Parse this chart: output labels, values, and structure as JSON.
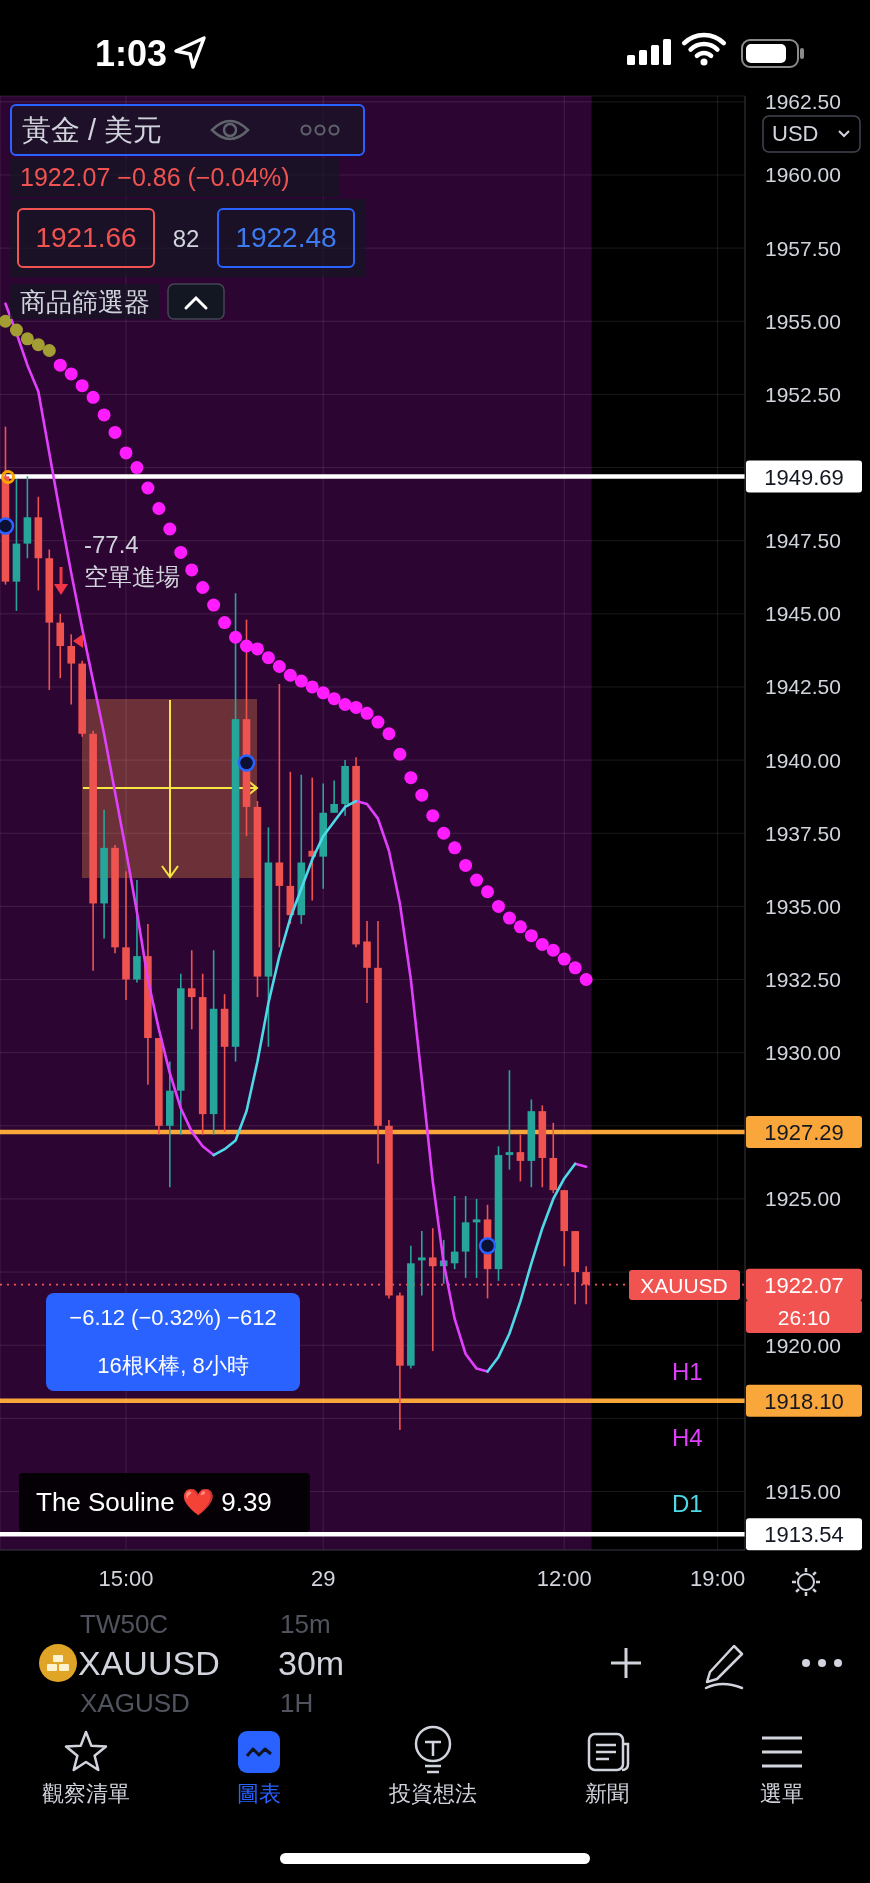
{
  "chart_data": {
    "type": "candlestick",
    "annotations": [
      "1:03",
      "黃金 / 美元",
      "1922.07 −0.86 (−0.04%)",
      "1921.66",
      "82",
      "1922.48",
      "商品篩選器",
      "-77.4",
      "空單進場",
      "−6.12 (−0.32%) −612",
      "16根K棒, 8小時",
      "USD",
      "H1",
      "H4",
      "D1",
      "The Souline ❤️ 9.39",
      "TW50C",
      "15m",
      "XAUUSD",
      "30m",
      "XAGUSD",
      "1H",
      "觀察清單",
      "圖表",
      "投資想法",
      "新聞",
      "選單",
      "XAUUSD",
      "26:10"
    ],
    "categories": [
      null,
      null,
      null,
      null,
      null,
      null,
      null,
      null,
      null,
      null,
      null,
      "15:00",
      null,
      null,
      null,
      null,
      null,
      null,
      null,
      null,
      null,
      null,
      null,
      null,
      null,
      null,
      null,
      null,
      null,
      "29",
      null,
      null,
      null,
      null,
      null,
      null,
      null,
      null,
      null,
      null,
      null,
      null,
      null,
      null,
      null,
      null,
      null,
      null,
      null,
      null,
      null,
      "12:00",
      null,
      null,
      null,
      null,
      null,
      null,
      null,
      null,
      null,
      null,
      null,
      null,
      null,
      "19:00",
      null,
      null
    ],
    "ohlc": [
      [
        1949.7,
        1951.4,
        1946.0,
        1946.1
      ],
      [
        1946.1,
        1949.6,
        1945.1,
        1947.4
      ],
      [
        1947.4,
        1949.7,
        1946.9,
        1948.3
      ],
      [
        1948.3,
        1949.0,
        1945.8,
        1946.9
      ],
      [
        1946.9,
        1947.2,
        1942.4,
        1944.7
      ],
      [
        1944.7,
        1945.0,
        1942.8,
        1943.9
      ],
      [
        1943.9,
        1944.3,
        1941.9,
        1943.3
      ],
      [
        1943.3,
        1943.4,
        1940.8,
        1940.9
      ],
      [
        1940.9,
        1941.0,
        1932.8,
        1935.1
      ],
      [
        1935.1,
        1938.3,
        1933.9,
        1937.0
      ],
      [
        1937.0,
        1937.1,
        1933.4,
        1933.6
      ],
      [
        1933.6,
        1936.2,
        1931.8,
        1932.5
      ],
      [
        1932.5,
        1935.9,
        1932.4,
        1933.3
      ],
      [
        1933.3,
        1934.4,
        1928.9,
        1930.5
      ],
      [
        1930.5,
        1930.5,
        1927.2,
        1927.5
      ],
      [
        1927.5,
        1929.7,
        1925.4,
        1928.7
      ],
      [
        1928.7,
        1932.7,
        1927.2,
        1932.2
      ],
      [
        1932.2,
        1933.5,
        1930.8,
        1931.9
      ],
      [
        1931.9,
        1932.7,
        1927.2,
        1927.9
      ],
      [
        1927.9,
        1933.5,
        1927.2,
        1931.5
      ],
      [
        1931.5,
        1932.0,
        1927.3,
        1930.2
      ],
      [
        1930.2,
        1945.7,
        1929.7,
        1941.4
      ],
      [
        1941.4,
        1944.8,
        1937.4,
        1938.4
      ],
      [
        1938.4,
        1938.6,
        1931.9,
        1932.6
      ],
      [
        1932.6,
        1937.7,
        1930.2,
        1936.5
      ],
      [
        1936.5,
        1942.6,
        1933.6,
        1935.7
      ],
      [
        1935.7,
        1939.6,
        1934.4,
        1934.7
      ],
      [
        1934.7,
        1939.5,
        1934.4,
        1936.5
      ],
      [
        1936.9,
        1939.4,
        1935.2,
        1936.7
      ],
      [
        1936.7,
        1939.2,
        1935.6,
        1938.2
      ],
      [
        1938.2,
        1939.3,
        1938.2,
        1938.5
      ],
      [
        1938.5,
        1940.0,
        1938.1,
        1939.8
      ],
      [
        1939.8,
        1940.1,
        1933.6,
        1933.7
      ],
      [
        1933.8,
        1934.5,
        1931.7,
        1932.9
      ],
      [
        1932.9,
        1934.5,
        1926.2,
        1927.5
      ],
      [
        1927.5,
        1927.7,
        1921.6,
        1921.7
      ],
      [
        1921.7,
        1921.8,
        1917.1,
        1919.3
      ],
      [
        1919.3,
        1923.4,
        1919.2,
        1922.8
      ],
      [
        1922.9,
        1923.9,
        1921.7,
        1923.0
      ],
      [
        1923.0,
        1924.0,
        1919.8,
        1922.7
      ],
      [
        1922.7,
        1923.6,
        1922.1,
        1922.9
      ],
      [
        1922.8,
        1925.1,
        1922.6,
        1923.2
      ],
      [
        1923.2,
        1925.1,
        1922.3,
        1924.2
      ],
      [
        1924.2,
        1925.0,
        1922.3,
        1924.3
      ],
      [
        1924.3,
        1924.8,
        1921.6,
        1922.6
      ],
      [
        1922.6,
        1926.8,
        1922.2,
        1926.5
      ],
      [
        1926.5,
        1929.4,
        1926.0,
        1926.6
      ],
      [
        1926.6,
        1927.2,
        1925.6,
        1926.3
      ],
      [
        1926.3,
        1928.4,
        1925.4,
        1928.0
      ],
      [
        1928.0,
        1928.2,
        1925.4,
        1926.4
      ],
      [
        1926.4,
        1927.6,
        1925.2,
        1925.3
      ],
      [
        1925.3,
        1925.3,
        1922.7,
        1923.9
      ],
      [
        1923.9,
        1923.9,
        1921.4,
        1922.5
      ],
      [
        1922.5,
        1922.7,
        1921.4,
        1922.07
      ],
      null,
      null,
      null,
      null,
      null,
      null,
      null,
      null,
      null,
      null,
      null,
      null,
      null,
      null
    ],
    "colors": [
      "#ef5350",
      "#26a69a",
      "#26a69a",
      "#ef5350",
      "#ef5350",
      "#ef5350",
      "#ef5350",
      "#ef5350",
      "#ef5350",
      "#26a69a",
      "#ef5350",
      "#ef5350",
      "#26a69a",
      "#ef5350",
      "#ef5350",
      "#26a69a",
      "#26a69a",
      "#ef5350",
      "#ef5350",
      "#26a69a",
      "#ef5350",
      "#26a69a",
      "#ef5350",
      "#ef5350",
      "#26a69a",
      "#ef5350",
      "#ef5350",
      "#26a69a",
      "#ef5350",
      "#26a69a",
      "#26a69a",
      "#26a69a",
      "#ef5350",
      "#ef5350",
      "#ef5350",
      "#ef5350",
      "#ef5350",
      "#26a69a",
      "#26a69a",
      "#ef5350",
      "#26a69a",
      "#26a69a",
      "#26a69a",
      "#26a69a",
      "#ef5350",
      "#26a69a",
      "#26a69a",
      "#ef5350",
      "#26a69a",
      "#ef5350",
      "#ef5350",
      "#ef5350",
      "#ef5350",
      "#ef5350",
      null,
      null,
      null,
      null,
      null,
      null,
      null,
      null,
      null,
      null,
      null,
      null,
      null,
      null
    ],
    "series": [
      {
        "type": "line",
        "color": "#e040fb",
        "values": [
          1955.6,
          1954.6,
          1953.5,
          1952.6,
          1950.5,
          1948.4,
          1946.4,
          1944.5,
          1942.7,
          1940.9,
          1938.9,
          1936.9,
          1934.8,
          1932.5,
          1930.8,
          1929.3,
          1928.1,
          1927.3,
          1926.8,
          1926.5,
          null,
          null,
          null,
          null,
          null,
          null,
          null,
          null,
          null,
          null,
          null,
          null,
          1938.6,
          1938.5,
          1938.0,
          1936.9,
          1935.1,
          1932.5,
          1929.1,
          1925.6,
          1922.8,
          1920.9,
          1919.7,
          1919.2,
          1919.1,
          null,
          null,
          null,
          null,
          null,
          null,
          null,
          1926.2,
          1926.1,
          null,
          null,
          null,
          null,
          null,
          null,
          null,
          null,
          null,
          null,
          null,
          null,
          null,
          null
        ]
      },
      {
        "type": "line",
        "color": "#4dd9e8",
        "values": [
          null,
          null,
          null,
          null,
          null,
          null,
          null,
          null,
          null,
          null,
          null,
          null,
          null,
          null,
          null,
          null,
          null,
          null,
          null,
          1926.5,
          1926.7,
          1927.0,
          1928.0,
          1929.7,
          1931.7,
          1933.3,
          1934.6,
          1935.6,
          1936.6,
          1937.4,
          1937.9,
          1938.4,
          1938.6,
          null,
          null,
          null,
          null,
          null,
          null,
          null,
          null,
          null,
          null,
          null,
          1919.1,
          1919.6,
          1920.4,
          1921.5,
          1922.8,
          1924.0,
          1925.0,
          1925.7,
          1926.2,
          null,
          null,
          null,
          null,
          null,
          null,
          null,
          null,
          null,
          null,
          null,
          null,
          null,
          null,
          null
        ]
      },
      {
        "type": "scatter",
        "marker": "circle",
        "colors": [
          "#a39e34",
          "#a39e34",
          "#a39e34",
          "#a39e34",
          "#a39e34",
          "#ff1cff",
          "#ff1cff",
          "#ff1cff",
          "#ff1cff",
          "#ff1cff",
          "#ff1cff",
          "#ff1cff",
          "#ff1cff",
          "#ff1cff",
          "#ff1cff",
          "#ff1cff",
          "#ff1cff",
          "#ff1cff",
          "#ff1cff",
          "#ff1cff",
          "#ff1cff",
          "#ff1cff",
          "#ff1cff",
          "#ff1cff",
          "#ff1cff",
          "#ff1cff",
          "#ff1cff",
          "#ff1cff",
          "#ff1cff",
          "#ff1cff",
          "#ff1cff",
          "#ff1cff",
          "#ff1cff",
          "#ff1cff",
          "#ff1cff",
          "#ff1cff",
          "#ff1cff",
          "#ff1cff",
          "#ff1cff",
          "#ff1cff",
          "#ff1cff",
          "#ff1cff",
          "#ff1cff",
          "#ff1cff",
          "#ff1cff",
          "#ff1cff",
          "#ff1cff",
          "#ff1cff",
          "#ff1cff",
          "#ff1cff",
          "#ff1cff",
          "#ff1cff",
          "#ff1cff",
          "#ff1cff",
          null,
          null,
          null,
          null,
          null,
          null,
          null,
          null,
          null,
          null,
          null,
          null,
          null,
          null
        ],
        "values": [
          1955.0,
          1954.7,
          1954.4,
          1954.2,
          1954.0,
          1953.5,
          1953.2,
          1952.8,
          1952.4,
          1951.8,
          1951.2,
          1950.5,
          1950.0,
          1949.3,
          1948.6,
          1947.9,
          1947.1,
          1946.5,
          1945.9,
          1945.3,
          1944.7,
          1944.2,
          1943.9,
          1943.8,
          1943.5,
          1943.2,
          1942.9,
          1942.7,
          1942.5,
          1942.3,
          1942.1,
          1941.9,
          1941.8,
          1941.6,
          1941.3,
          1940.9,
          1940.2,
          1939.4,
          1938.8,
          1938.1,
          1937.5,
          1937.0,
          1936.4,
          1935.9,
          1935.5,
          1935.0,
          1934.6,
          1934.3,
          1934.0,
          1933.7,
          1933.5,
          1933.2,
          1932.9,
          1932.5,
          null,
          null,
          null,
          null,
          null,
          null,
          null,
          null,
          null,
          null,
          null,
          null,
          null,
          null
        ]
      },
      {
        "type": "scatter",
        "marker": "circle",
        "color": "#2962ff",
        "values": [
          1948.0,
          null,
          null,
          null,
          null,
          null,
          null,
          null,
          null,
          null,
          null,
          null,
          null,
          null,
          null,
          null,
          null,
          null,
          null,
          null,
          null,
          null,
          1939.9,
          null,
          null,
          null,
          null,
          null,
          null,
          null,
          null,
          null,
          null,
          null,
          null,
          null,
          null,
          null,
          null,
          null,
          null,
          null,
          null,
          null,
          1923.4,
          null,
          null,
          null,
          null,
          null,
          null,
          null,
          null,
          null,
          null,
          null,
          null,
          null,
          null,
          null,
          null,
          null,
          null,
          null,
          null,
          null,
          null,
          null
        ]
      }
    ],
    "ylim": [
      1913.0,
      1962.7
    ],
    "yticks": [
      {
        "value": 1915,
        "label": "1915.00"
      },
      {
        "value": 1917.5,
        "label": null
      },
      {
        "value": 1920,
        "label": "1920.00"
      },
      {
        "value": 1922.5,
        "label": null
      },
      {
        "value": 1925,
        "label": "1925.00"
      },
      {
        "value": 1927.5,
        "label": null
      },
      {
        "value": 1930,
        "label": "1930.00"
      },
      {
        "value": 1932.5,
        "label": "1932.50"
      },
      {
        "value": 1935,
        "label": "1935.00"
      },
      {
        "value": 1937.5,
        "label": "1937.50"
      },
      {
        "value": 1940,
        "label": "1940.00"
      },
      {
        "value": 1942.5,
        "label": "1942.50"
      },
      {
        "value": 1945,
        "label": "1945.00"
      },
      {
        "value": 1947.5,
        "label": "1947.50"
      },
      {
        "value": 1950,
        "label": null
      },
      {
        "value": 1952.5,
        "label": "1952.50"
      },
      {
        "value": 1955,
        "label": "1955.00"
      },
      {
        "value": 1957.5,
        "label": "1957.50"
      },
      {
        "value": 1960,
        "label": "1960.00"
      },
      {
        "value": 1962.5,
        "label": "1962.50"
      }
    ],
    "grid": true,
    "ref_lines": [
      {
        "axis": "y",
        "value": 1949.69,
        "label": "1949.69",
        "color": "#ffffff"
      },
      {
        "axis": "y",
        "value": 1927.29,
        "label": "1927.29",
        "color": "#f9a63a"
      },
      {
        "axis": "y",
        "value": 1918.1,
        "label": "1918.10",
        "color": "#f9a63a"
      },
      {
        "axis": "y",
        "value": 1913.54,
        "label": "1913.54",
        "color": "#ffffff"
      },
      {
        "axis": "y",
        "value": 1922.07,
        "label": "1922.07",
        "color": "#f05350",
        "line_style": "dotted"
      }
    ]
  }
}
